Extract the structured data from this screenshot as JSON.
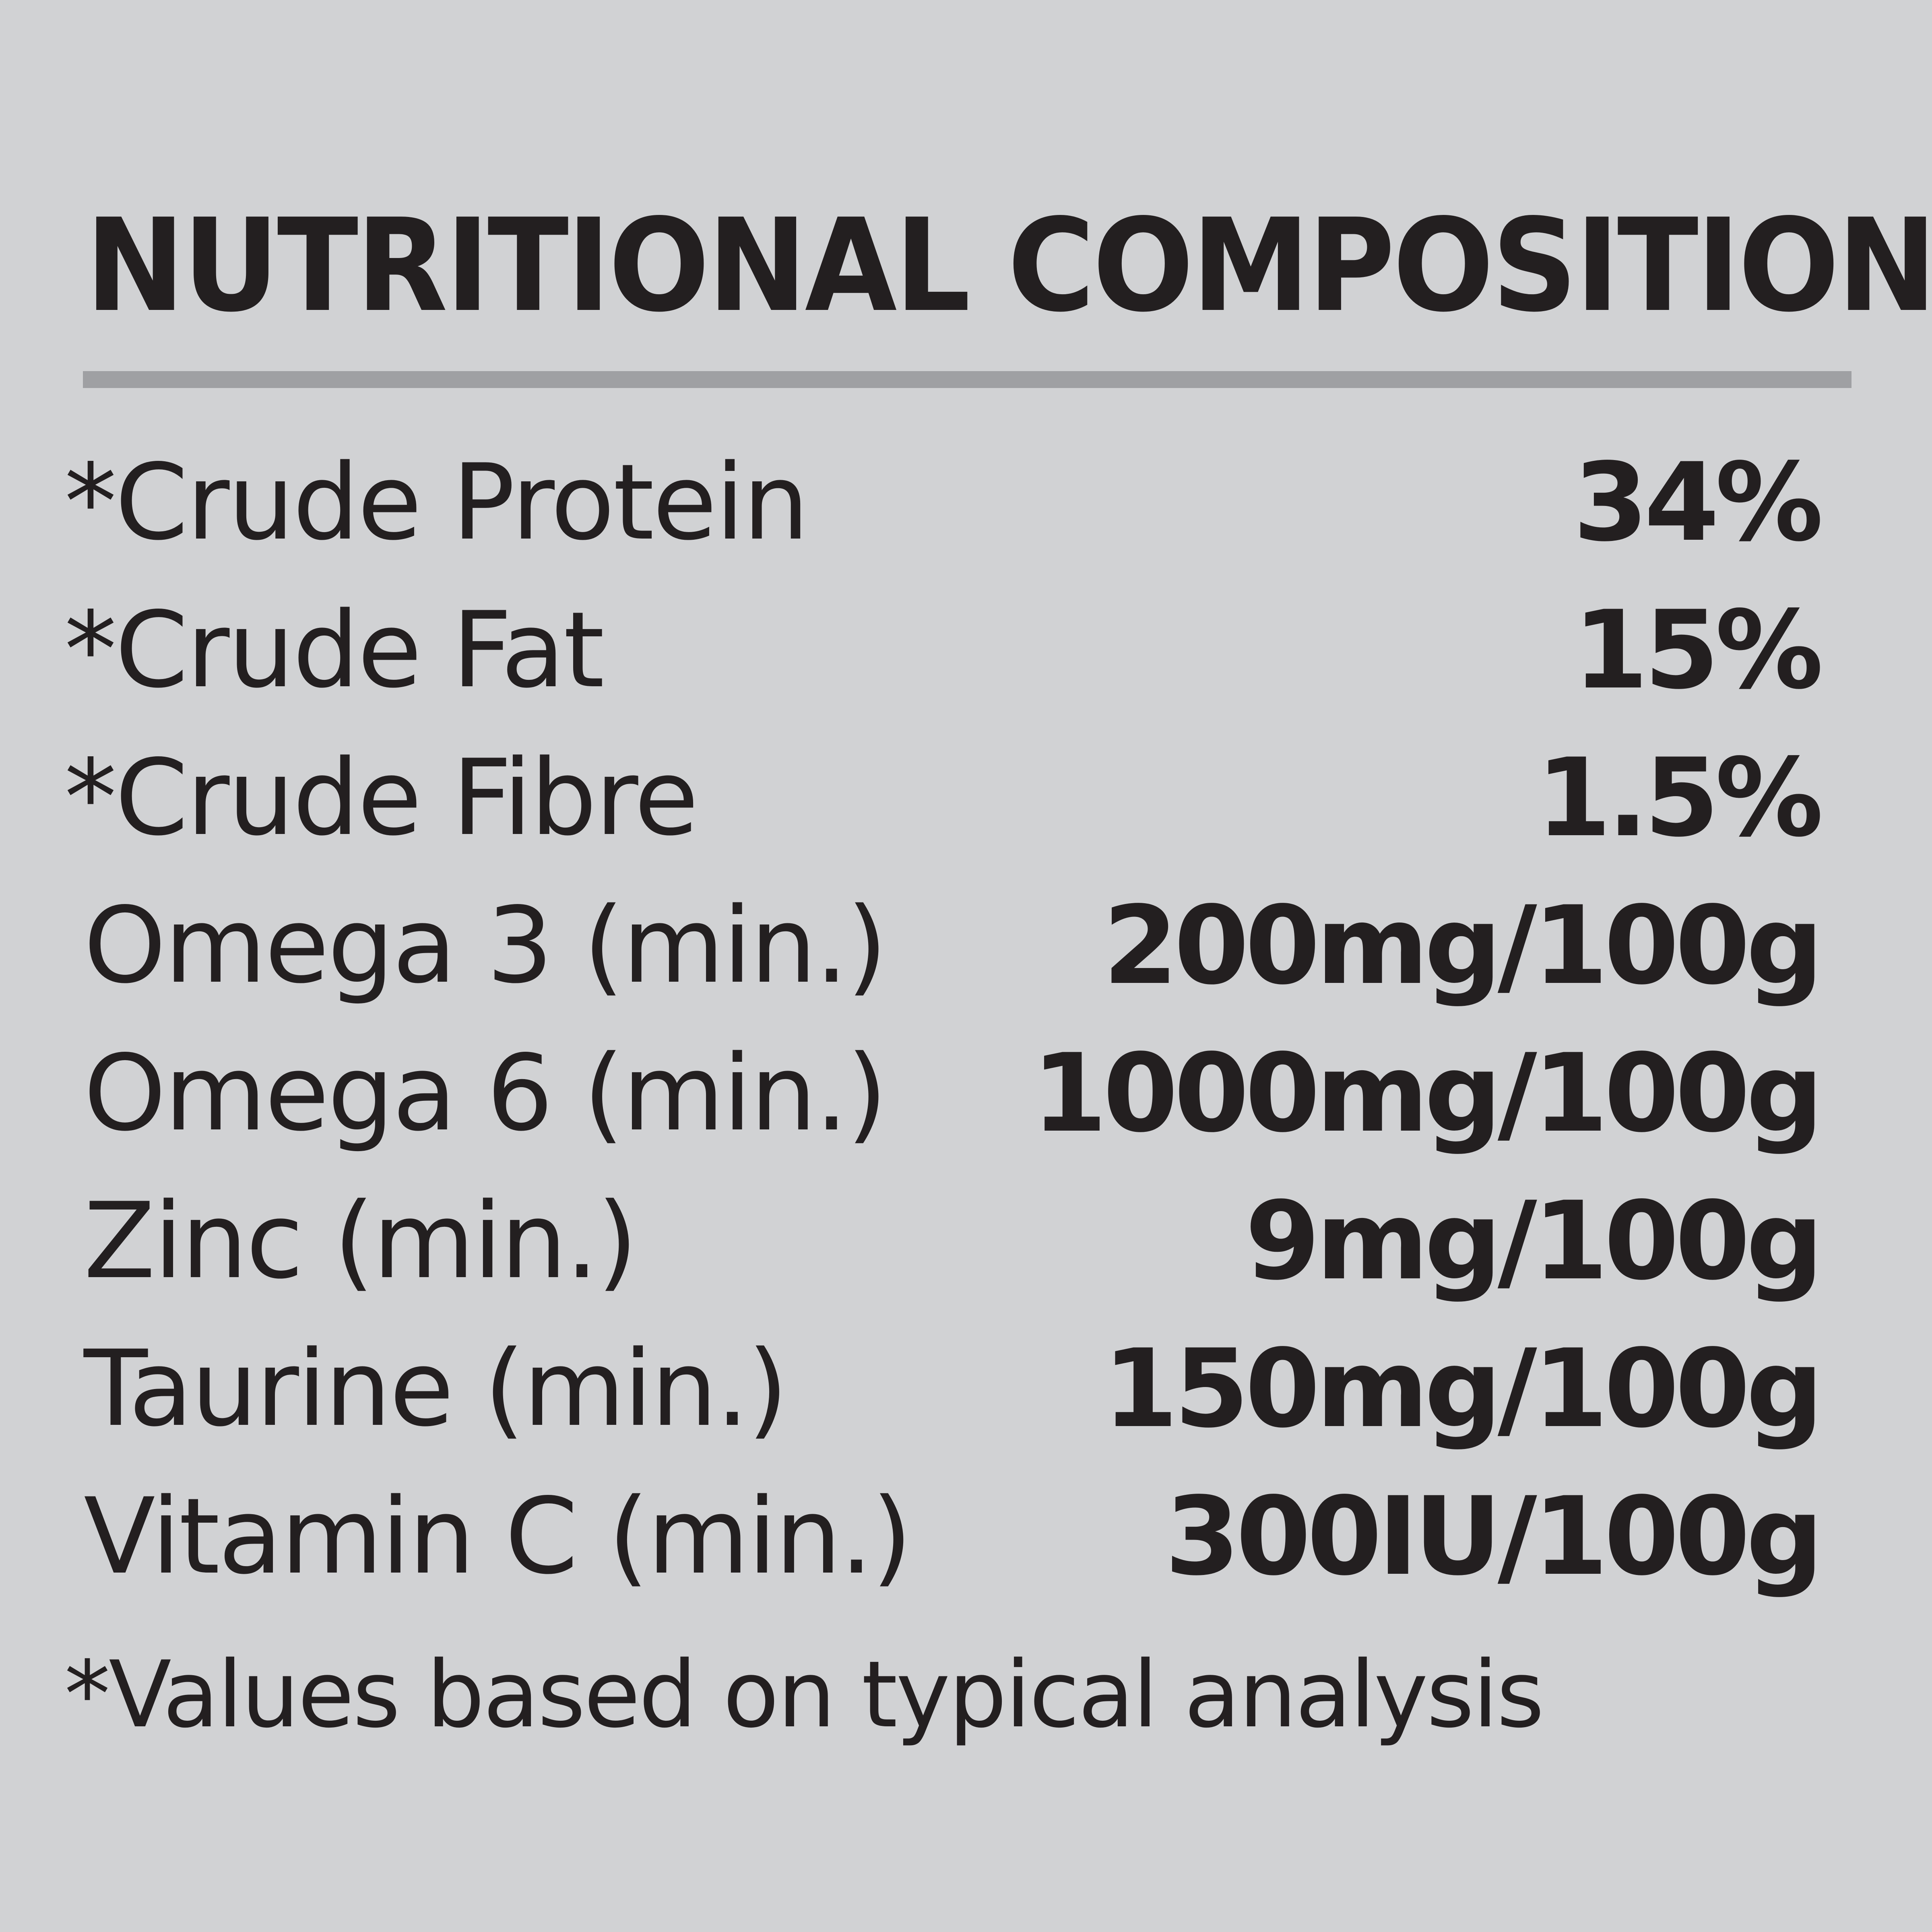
{
  "title": "NUTRITIONAL COMPOSITION",
  "rows": [
    {
      "label": "*Crude Protein",
      "value": "34%"
    },
    {
      "label": "*Crude Fat",
      "value": "15%"
    },
    {
      "label": "*Crude Fibre",
      "value": "1.5%"
    },
    {
      "label": "Omega 3 (min.)",
      "value": "200mg/100g"
    },
    {
      "label": "Omega 6 (min.)",
      "value": "1000mg/100g"
    },
    {
      "label": "Zinc (min.)",
      "value": "9mg/100g"
    },
    {
      "label": "Taurine (min.)",
      "value": "150mg/100g"
    },
    {
      "label": "Vitamin C (min.)",
      "value": "300IU/100g"
    }
  ],
  "footnote": "*Values based on typical analysis",
  "colors": {
    "background": "#d1d2d4",
    "text": "#231f20",
    "divider": "#9fa0a3"
  }
}
